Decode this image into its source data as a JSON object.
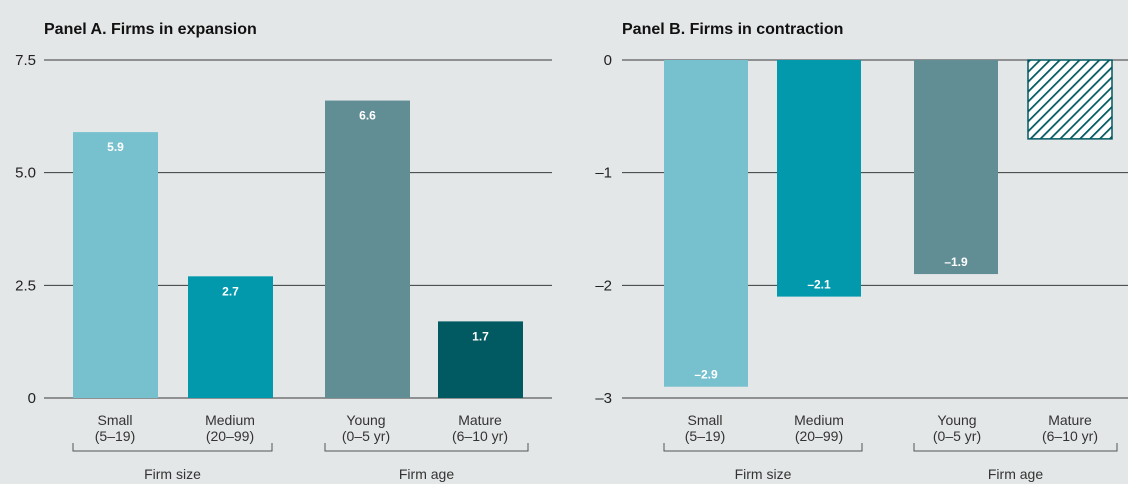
{
  "chart_data": [
    {
      "type": "bar",
      "title": "Panel A.  Firms in expansion",
      "categories": [
        "Small\n(5–19)",
        "Medium\n(20–99)",
        "Young\n(0–5 yr)",
        "Mature\n(6–10 yr)"
      ],
      "values": [
        5.9,
        2.7,
        6.6,
        1.7
      ],
      "data_labels": [
        "5.9",
        "2.7",
        "6.6",
        "1.7"
      ],
      "colors": [
        "#77c1cf",
        "#0399ad",
        "#618e95",
        "#015961"
      ],
      "hatched": [
        false,
        false,
        false,
        false
      ],
      "groups": [
        {
          "label": "Firm size",
          "categories": [
            0,
            1
          ]
        },
        {
          "label": "Firm age",
          "categories": [
            2,
            3
          ]
        }
      ],
      "ylim": [
        0,
        7.5
      ],
      "yticks": [
        0,
        2.5,
        5.0,
        7.5
      ],
      "ytick_labels": [
        "0",
        "2.5",
        "5.0",
        "7.5"
      ],
      "grid": true
    },
    {
      "type": "bar",
      "title": "Panel B.  Firms in contraction",
      "categories": [
        "Small\n(5–19)",
        "Medium\n(20–99)",
        "Young\n(0–5 yr)",
        "Mature\n(6–10 yr)"
      ],
      "values": [
        -2.9,
        -2.1,
        -1.9,
        -0.7
      ],
      "data_labels": [
        "–2.9",
        "–2.1",
        "–1.9",
        ""
      ],
      "colors": [
        "#77c1cf",
        "#0399ad",
        "#618e95",
        "#015961"
      ],
      "hatched": [
        false,
        false,
        false,
        true
      ],
      "groups": [
        {
          "label": "Firm size",
          "categories": [
            0,
            1
          ]
        },
        {
          "label": "Firm age",
          "categories": [
            2,
            3
          ]
        }
      ],
      "ylim": [
        -3,
        0
      ],
      "yticks": [
        -3,
        -2,
        -1,
        0
      ],
      "ytick_labels": [
        "–3",
        "–2",
        "–1",
        "0"
      ],
      "grid": true
    }
  ]
}
